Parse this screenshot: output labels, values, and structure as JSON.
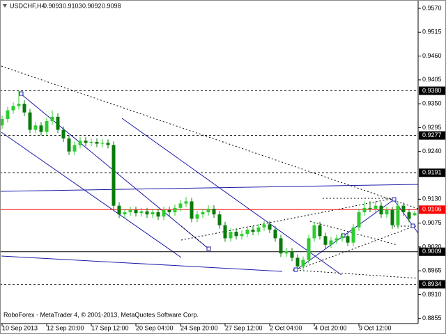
{
  "chart_data": {
    "type": "candlestick",
    "symbol": "USDCHF,H4",
    "ohlc_display": [
      0.9093,
      0.9103,
      0.9092,
      0.9098
    ],
    "footer": "RoboForex - MetaTrader 4, © 2001-2013, MetaQuotes Software Corp.",
    "categories": [
      "10 Sep 2013",
      null,
      null,
      null,
      null,
      null,
      null,
      null,
      "12 Sep 20:00",
      null,
      null,
      null,
      null,
      null,
      null,
      null,
      "17 Sep 12:00",
      null,
      null,
      null,
      null,
      null,
      null,
      null,
      "20 Sep 04:00",
      null,
      null,
      null,
      null,
      null,
      null,
      null,
      "24 Sep 20:00",
      null,
      null,
      null,
      null,
      null,
      null,
      null,
      "27 Sep 12:00",
      null,
      null,
      null,
      null,
      null,
      null,
      null,
      "2 Oct 04:00",
      null,
      null,
      null,
      null,
      null,
      null,
      null,
      "4 Oct 20:00",
      null,
      null,
      null,
      null,
      null,
      null,
      null,
      "9 Oct 12:00",
      null,
      null,
      null,
      null,
      null,
      null,
      null,
      null,
      null,
      null
    ],
    "open": [
      0.93,
      0.9315,
      0.9335,
      0.9345,
      0.935,
      0.933,
      0.929,
      0.93,
      0.9285,
      0.931,
      0.932,
      0.929,
      0.927,
      0.924,
      0.9255,
      0.9265,
      0.926,
      0.9262,
      0.9258,
      0.926,
      0.9255,
      0.9115,
      0.9095,
      0.91,
      0.9105,
      0.9098,
      0.9102,
      0.9095,
      0.91,
      0.909,
      0.9105,
      0.91,
      0.911,
      0.912,
      0.9125,
      0.9085,
      0.9095,
      0.91,
      0.9108,
      0.9095,
      0.907,
      0.904,
      0.9055,
      0.9045,
      0.905,
      0.906,
      0.9055,
      0.9065,
      0.9072,
      0.906,
      0.904,
      0.9005,
      0.901,
      0.8995,
      0.8975,
      0.899,
      0.904,
      0.907,
      0.9045,
      0.9025,
      0.9035,
      0.904,
      0.9045,
      0.903,
      0.9065,
      0.91,
      0.911,
      0.9108,
      0.9115,
      0.9095,
      0.9105,
      0.907,
      0.9115,
      0.91,
      0.9093
    ],
    "high": [
      0.9323,
      0.9343,
      0.9353,
      0.938,
      0.9358,
      0.9338,
      0.9308,
      0.9308,
      0.9318,
      0.9335,
      0.9328,
      0.9298,
      0.9278,
      0.9263,
      0.9273,
      0.9273,
      0.927,
      0.927,
      0.9268,
      0.9268,
      0.9263,
      0.9123,
      0.9108,
      0.9113,
      0.9113,
      0.911,
      0.911,
      0.9108,
      0.9108,
      0.9113,
      0.9113,
      0.9118,
      0.9128,
      0.9135,
      0.9133,
      0.9103,
      0.9108,
      0.9116,
      0.9116,
      0.9103,
      0.9078,
      0.9063,
      0.9063,
      0.9058,
      0.9068,
      0.9068,
      0.9073,
      0.908,
      0.908,
      0.9068,
      0.9048,
      0.9018,
      0.9018,
      0.9003,
      0.8998,
      0.9048,
      0.9078,
      0.9078,
      0.9053,
      0.9043,
      0.9048,
      0.9053,
      0.9053,
      0.9073,
      0.9108,
      0.9125,
      0.9125,
      0.9125,
      0.9123,
      0.9113,
      0.9113,
      0.9125,
      0.9123,
      0.9108,
      0.9103
    ],
    "low": [
      0.9292,
      0.9307,
      0.9327,
      0.9337,
      0.9322,
      0.9282,
      0.9282,
      0.9277,
      0.9277,
      0.9302,
      0.9282,
      0.9262,
      0.9232,
      0.9232,
      0.9247,
      0.9252,
      0.9252,
      0.925,
      0.925,
      0.9247,
      0.9107,
      0.9087,
      0.9087,
      0.9092,
      0.909,
      0.909,
      0.9087,
      0.9087,
      0.9082,
      0.9082,
      0.9092,
      0.9092,
      0.9102,
      0.9112,
      0.9077,
      0.9077,
      0.9087,
      0.9092,
      0.9087,
      0.9062,
      0.9032,
      0.9032,
      0.9037,
      0.9037,
      0.9042,
      0.9047,
      0.9047,
      0.9057,
      0.9052,
      0.9032,
      0.8997,
      0.8997,
      0.8987,
      0.8965,
      0.8967,
      0.8982,
      0.9032,
      0.9037,
      0.9017,
      0.9017,
      0.9027,
      0.9032,
      0.9022,
      0.9022,
      0.9057,
      0.9092,
      0.91,
      0.91,
      0.9087,
      0.9087,
      0.9062,
      0.9062,
      0.9092,
      0.9077,
      0.9092
    ],
    "close": [
      0.9315,
      0.9335,
      0.9345,
      0.935,
      0.933,
      0.929,
      0.93,
      0.9285,
      0.931,
      0.932,
      0.929,
      0.927,
      0.924,
      0.9255,
      0.9265,
      0.926,
      0.9262,
      0.9258,
      0.926,
      0.9255,
      0.9115,
      0.9095,
      0.91,
      0.9105,
      0.9098,
      0.9102,
      0.9095,
      0.91,
      0.909,
      0.9105,
      0.91,
      0.911,
      0.912,
      0.9125,
      0.9085,
      0.9095,
      0.91,
      0.9108,
      0.9095,
      0.907,
      0.904,
      0.9055,
      0.9045,
      0.905,
      0.906,
      0.9055,
      0.9065,
      0.9072,
      0.906,
      0.904,
      0.9005,
      0.901,
      0.8995,
      0.8975,
      0.899,
      0.904,
      0.907,
      0.9045,
      0.9025,
      0.9035,
      0.904,
      0.9045,
      0.903,
      0.9065,
      0.91,
      0.911,
      0.9108,
      0.9115,
      0.9095,
      0.9105,
      0.907,
      0.9115,
      0.91,
      0.9085,
      0.9098
    ],
    "up_color": "#2ecc2e",
    "down_color": "#0a7a0a",
    "ylim": [
      0.8845,
      0.9586
    ],
    "yticks": [
      {
        "value": 0.957,
        "label": "0.9570"
      },
      0.9515,
      {
        "value": 0.946,
        "label": "0.9460"
      },
      0.9405,
      {
        "value": 0.935,
        "label": "0.9350"
      },
      0.9295,
      {
        "value": 0.924,
        "label": "0.9240"
      },
      {
        "value": 0.913,
        "label": "0.9130"
      },
      0.9075,
      {
        "value": 0.902,
        "label": "0.9020"
      },
      0.8965,
      {
        "value": 0.891,
        "label": "0.8910"
      },
      0.8855
    ],
    "levels": [
      {
        "value": 0.938,
        "label": "0.9380",
        "color": "#000000",
        "dashed": true
      },
      {
        "value": 0.9277,
        "label": "0.9277",
        "color": "#000000",
        "dashed": true
      },
      {
        "value": 0.9191,
        "label": "0.9191",
        "color": "#000000",
        "dashed": true
      },
      {
        "value": 0.9106,
        "label": "0.9106",
        "color": "#ff0000",
        "dashed": false
      },
      {
        "value": 0.9009,
        "label": "0.9009",
        "color": "#000000",
        "dashed": false
      },
      {
        "value": 0.8934,
        "label": "0.8934",
        "color": "#000000",
        "dashed": true
      }
    ]
  }
}
